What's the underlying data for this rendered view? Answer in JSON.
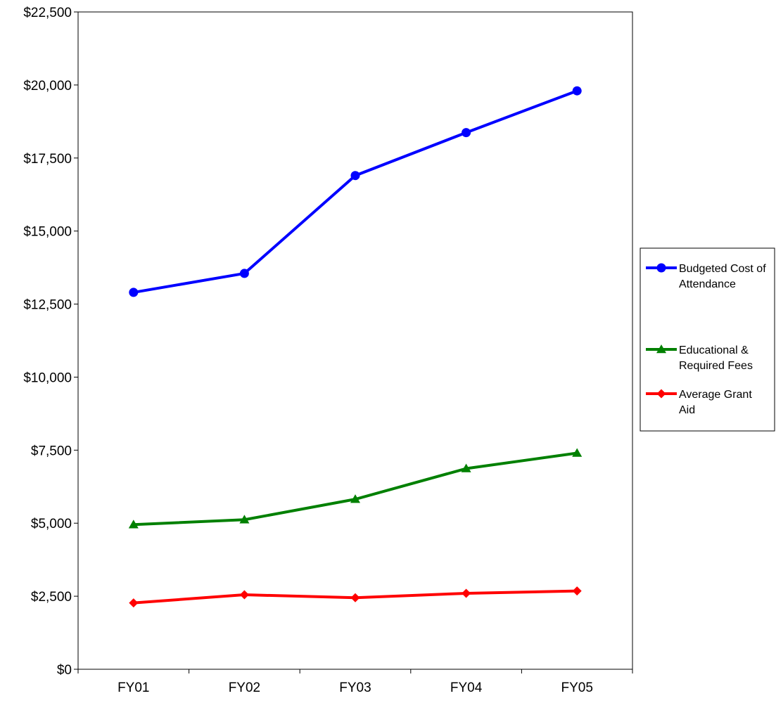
{
  "chart_data": {
    "type": "line",
    "categories": [
      "FY01",
      "FY02",
      "FY03",
      "FY04",
      "FY05"
    ],
    "ylim": [
      0,
      22500
    ],
    "ytick_step": 2500,
    "ytick_labels": [
      "$0",
      "$2,500",
      "$5,000",
      "$7,500",
      "$10,000",
      "$12,500",
      "$15,000",
      "$17,500",
      "$20,000",
      "$22,500"
    ],
    "grid": true,
    "legend_position": "right",
    "series": [
      {
        "name": "Budgeted Cost of Attendance",
        "name_lines": [
          "Budgeted Cost of",
          "Attendance"
        ],
        "color": "#0000FF",
        "marker": "circle",
        "values": [
          12900,
          13550,
          16900,
          18370,
          19800
        ]
      },
      {
        "name": "Educational & Required Fees",
        "name_lines": [
          "Educational &",
          "Required Fees"
        ],
        "color": "#008000",
        "marker": "triangle",
        "values": [
          4950,
          5120,
          5820,
          6870,
          7400
        ]
      },
      {
        "name": "Average Grant Aid",
        "name_lines": [
          "Average Grant",
          "Aid"
        ],
        "color": "#FF0000",
        "marker": "diamond",
        "values": [
          2270,
          2550,
          2450,
          2600,
          2680
        ]
      }
    ]
  }
}
